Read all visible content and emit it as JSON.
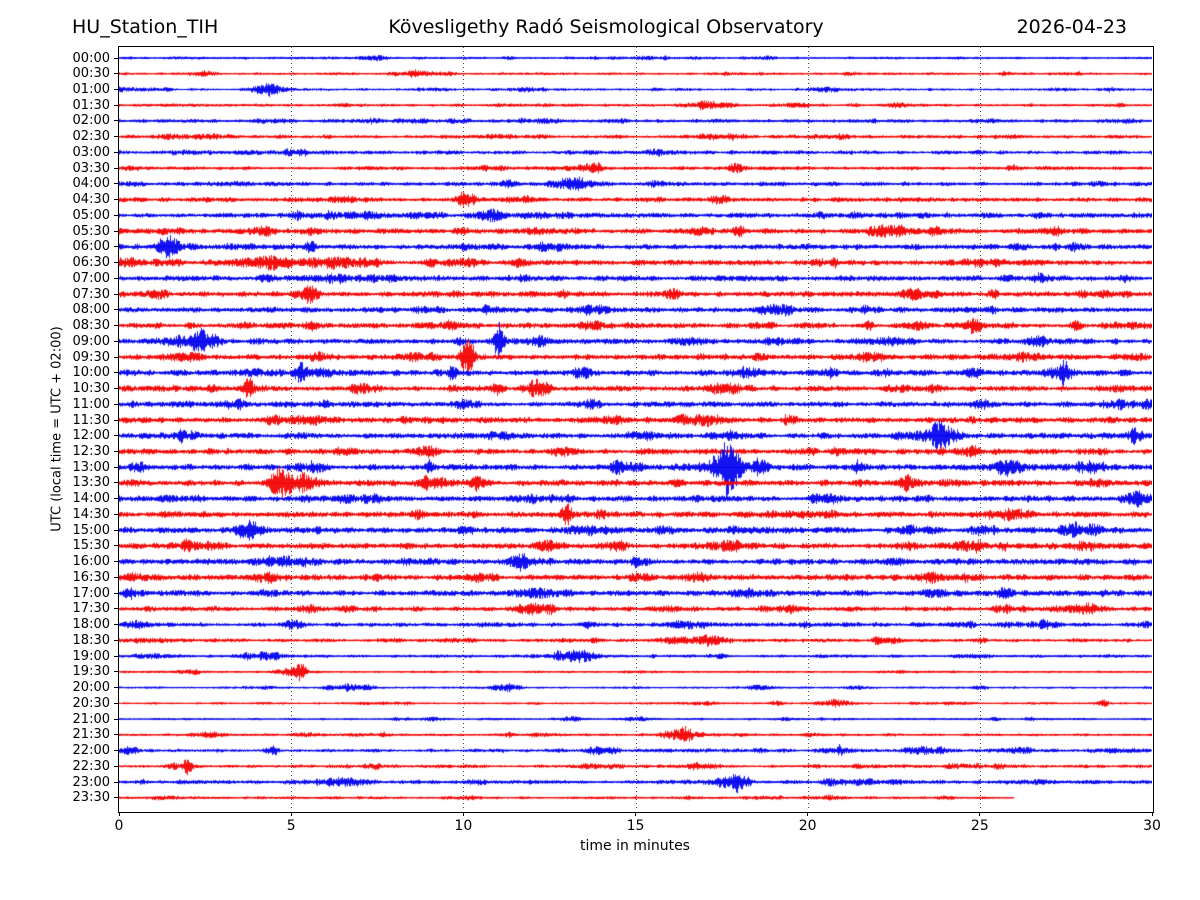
{
  "header": {
    "station": "HU_Station_TIH",
    "observatory": "Kövesligethy Radó Seismological Observatory",
    "date": "2026-04-23"
  },
  "axes": {
    "xlabel": "time in minutes",
    "ylabel": "UTC (local time = UTC + 02:00)",
    "xticks": [
      0,
      5,
      10,
      15,
      20,
      25,
      30
    ],
    "xlim": [
      0,
      30
    ],
    "grid_minutes": [
      5,
      10,
      15,
      20,
      25
    ]
  },
  "chart_data": {
    "type": "line",
    "subtype": "helicorder-dayplot",
    "title": "HU_Station_TIH — 2026-04-23",
    "minutes_per_row": 30,
    "trace_colors": {
      "blue": "#0000f0",
      "red": "#f40000"
    },
    "rows": [
      {
        "time": "00:00",
        "color": "blue",
        "amp": 1.7,
        "end": 30,
        "spikes": []
      },
      {
        "time": "00:30",
        "color": "red",
        "amp": 1.7,
        "end": 30,
        "spikes": []
      },
      {
        "time": "01:00",
        "color": "blue",
        "amp": 1.7,
        "end": 30,
        "spikes": []
      },
      {
        "time": "01:30",
        "color": "red",
        "amp": 1.9,
        "end": 30,
        "spikes": []
      },
      {
        "time": "02:00",
        "color": "blue",
        "amp": 2.3,
        "end": 30,
        "spikes": []
      },
      {
        "time": "02:30",
        "color": "red",
        "amp": 2.3,
        "end": 30,
        "spikes": []
      },
      {
        "time": "03:00",
        "color": "blue",
        "amp": 2.5,
        "end": 30,
        "spikes": []
      },
      {
        "time": "03:30",
        "color": "red",
        "amp": 2.3,
        "end": 30,
        "spikes": []
      },
      {
        "time": "04:00",
        "color": "blue",
        "amp": 2.7,
        "end": 30,
        "spikes": []
      },
      {
        "time": "04:30",
        "color": "red",
        "amp": 2.9,
        "end": 30,
        "spikes": []
      },
      {
        "time": "05:00",
        "color": "blue",
        "amp": 3.3,
        "end": 30,
        "spikes": []
      },
      {
        "time": "05:30",
        "color": "red",
        "amp": 3.3,
        "end": 30,
        "spikes": [
          [
            1.5,
            0.7,
            0.3
          ]
        ]
      },
      {
        "time": "06:00",
        "color": "blue",
        "amp": 3.5,
        "end": 30,
        "spikes": [
          [
            10.0,
            1.8,
            0.12
          ]
        ]
      },
      {
        "time": "06:30",
        "color": "red",
        "amp": 3.5,
        "end": 30,
        "spikes": [
          [
            20.8,
            1.5,
            0.1
          ]
        ]
      },
      {
        "time": "07:00",
        "color": "blue",
        "amp": 3.5,
        "end": 30,
        "spikes": []
      },
      {
        "time": "07:30",
        "color": "red",
        "amp": 3.5,
        "end": 30,
        "spikes": []
      },
      {
        "time": "08:00",
        "color": "blue",
        "amp": 3.3,
        "end": 30,
        "spikes": []
      },
      {
        "time": "08:30",
        "color": "red",
        "amp": 3.5,
        "end": 30,
        "spikes": []
      },
      {
        "time": "09:00",
        "color": "blue",
        "amp": 3.5,
        "end": 30,
        "spikes": [
          [
            11.0,
            3.0,
            0.1
          ],
          [
            9.9,
            1.2,
            0.15
          ]
        ]
      },
      {
        "time": "09:30",
        "color": "red",
        "amp": 3.7,
        "end": 30,
        "spikes": [
          [
            10.1,
            3.3,
            0.18
          ]
        ]
      },
      {
        "time": "10:00",
        "color": "blue",
        "amp": 3.7,
        "end": 30,
        "spikes": [
          [
            9.7,
            2.8,
            0.13
          ]
        ]
      },
      {
        "time": "10:30",
        "color": "red",
        "amp": 3.5,
        "end": 30,
        "spikes": [
          [
            11.0,
            2.0,
            0.13
          ]
        ]
      },
      {
        "time": "11:00",
        "color": "blue",
        "amp": 3.5,
        "end": 30,
        "spikes": [
          [
            0.35,
            1.8,
            0.1
          ]
        ]
      },
      {
        "time": "11:30",
        "color": "red",
        "amp": 3.7,
        "end": 30,
        "spikes": []
      },
      {
        "time": "12:00",
        "color": "blue",
        "amp": 3.7,
        "end": 30,
        "spikes": [
          [
            1.8,
            1.3,
            0.1
          ]
        ]
      },
      {
        "time": "12:30",
        "color": "red",
        "amp": 3.7,
        "end": 30,
        "spikes": []
      },
      {
        "time": "13:00",
        "color": "blue",
        "amp": 3.9,
        "end": 30,
        "spikes": [
          [
            9.0,
            2.0,
            0.12
          ]
        ]
      },
      {
        "time": "13:30",
        "color": "red",
        "amp": 3.9,
        "end": 30,
        "spikes": [
          [
            10.4,
            1.8,
            0.15
          ]
        ]
      },
      {
        "time": "14:00",
        "color": "blue",
        "amp": 3.7,
        "end": 30,
        "spikes": []
      },
      {
        "time": "14:30",
        "color": "red",
        "amp": 3.7,
        "end": 30,
        "spikes": [
          [
            13.0,
            2.6,
            0.15
          ]
        ]
      },
      {
        "time": "15:00",
        "color": "blue",
        "amp": 3.7,
        "end": 30,
        "spikes": []
      },
      {
        "time": "15:30",
        "color": "red",
        "amp": 3.7,
        "end": 30,
        "spikes": [
          [
            25.7,
            1.4,
            0.12
          ]
        ]
      },
      {
        "time": "16:00",
        "color": "blue",
        "amp": 3.7,
        "end": 30,
        "spikes": []
      },
      {
        "time": "16:30",
        "color": "red",
        "amp": 3.7,
        "end": 30,
        "spikes": []
      },
      {
        "time": "17:00",
        "color": "blue",
        "amp": 3.7,
        "end": 30,
        "spikes": []
      },
      {
        "time": "17:30",
        "color": "red",
        "amp": 3.3,
        "end": 30,
        "spikes": []
      },
      {
        "time": "18:00",
        "color": "blue",
        "amp": 2.7,
        "end": 30,
        "spikes": []
      },
      {
        "time": "18:30",
        "color": "red",
        "amp": 2.3,
        "end": 30,
        "spikes": [
          [
            22.0,
            1.3,
            0.12
          ]
        ]
      },
      {
        "time": "19:00",
        "color": "blue",
        "amp": 1.9,
        "end": 30,
        "spikes": [
          [
            15.5,
            1.5,
            0.1
          ]
        ]
      },
      {
        "time": "19:30",
        "color": "red",
        "amp": 1.5,
        "end": 30,
        "spikes": [
          [
            5.3,
            1.8,
            0.12
          ]
        ]
      },
      {
        "time": "20:00",
        "color": "blue",
        "amp": 1.4,
        "end": 30,
        "spikes": []
      },
      {
        "time": "20:30",
        "color": "red",
        "amp": 1.4,
        "end": 30,
        "spikes": [
          [
            12.0,
            1.5,
            0.15
          ],
          [
            19.1,
            1.8,
            0.2
          ]
        ]
      },
      {
        "time": "21:00",
        "color": "blue",
        "amp": 1.4,
        "end": 30,
        "spikes": []
      },
      {
        "time": "21:30",
        "color": "red",
        "amp": 1.7,
        "end": 30,
        "spikes": []
      },
      {
        "time": "22:00",
        "color": "blue",
        "amp": 2.3,
        "end": 30,
        "spikes": [
          [
            4.5,
            1.2,
            0.15
          ]
        ]
      },
      {
        "time": "22:30",
        "color": "red",
        "amp": 2.1,
        "end": 30,
        "spikes": [
          [
            2.0,
            1.4,
            0.12
          ],
          [
            13.5,
            1.3,
            0.15
          ]
        ]
      },
      {
        "time": "23:00",
        "color": "blue",
        "amp": 2.5,
        "end": 30,
        "spikes": [
          [
            21.0,
            1.2,
            0.2
          ]
        ]
      },
      {
        "time": "23:30",
        "color": "red",
        "amp": 1.8,
        "end": 26,
        "spikes": []
      }
    ]
  }
}
